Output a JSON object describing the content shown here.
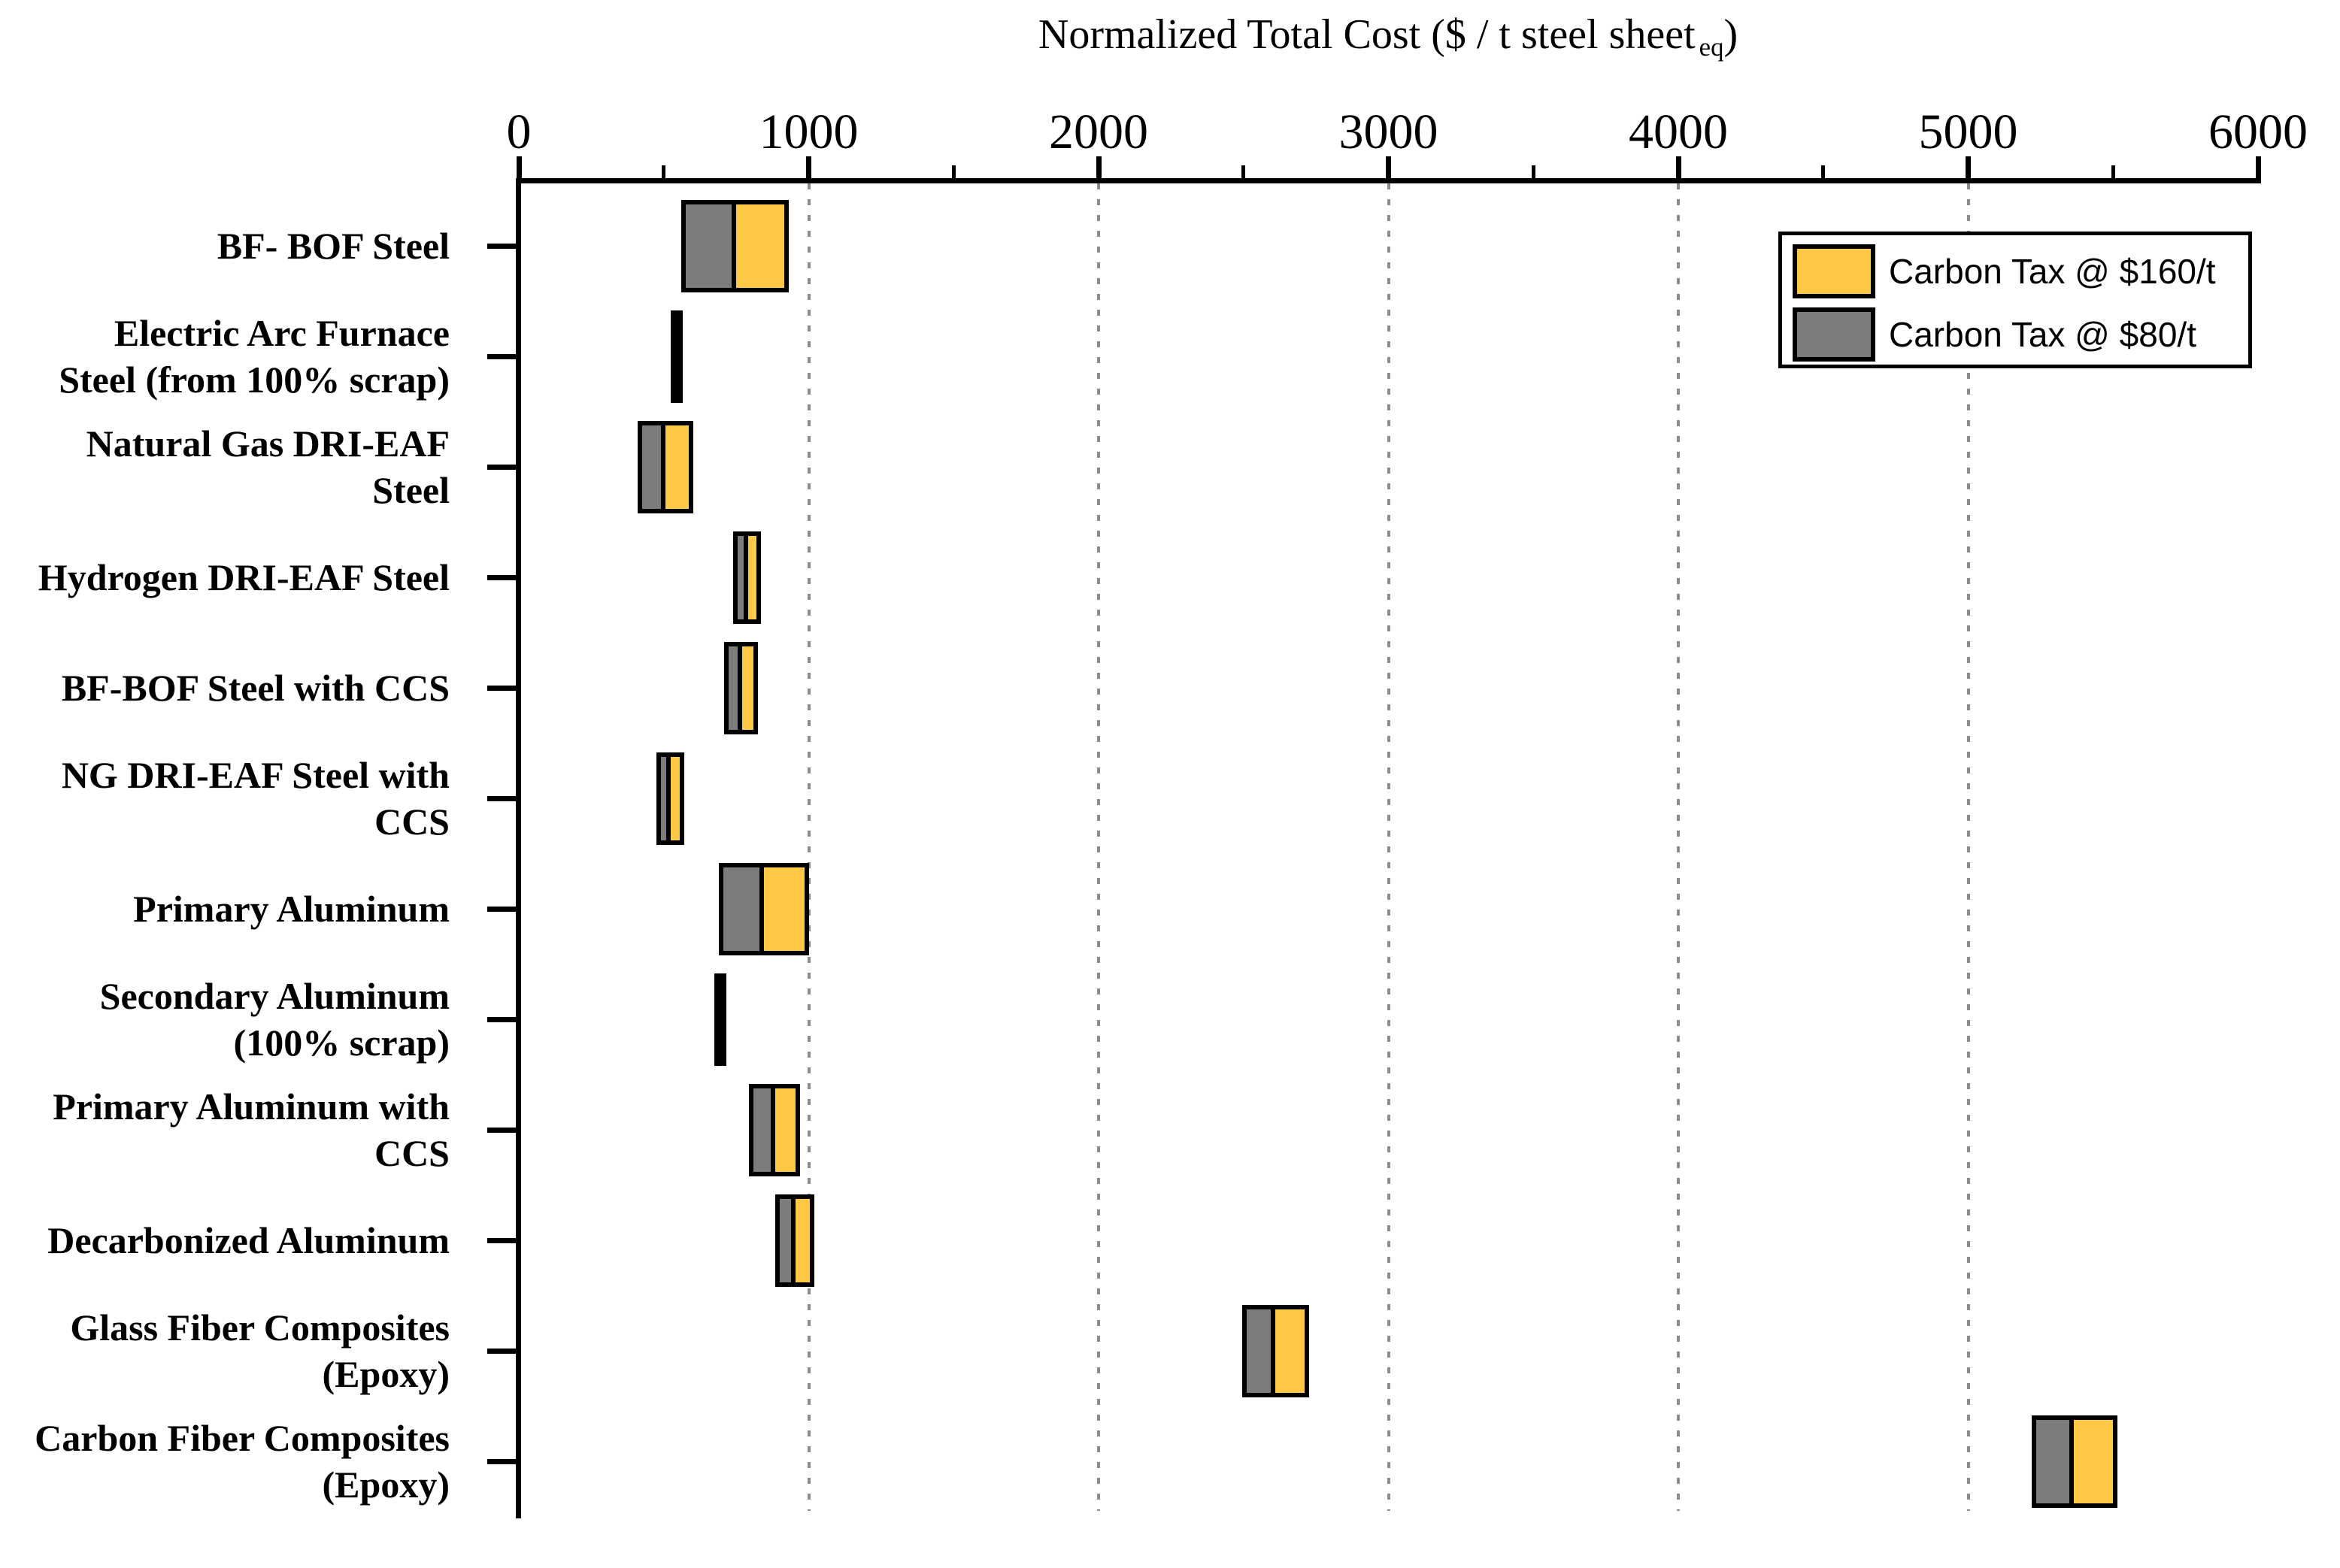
{
  "title": {
    "main": "Normalized Total Cost ($ / t steel sheet",
    "subscript": "eq",
    "suffix": ")"
  },
  "legend": {
    "items": [
      {
        "label": "Carbon Tax @ $160/t",
        "color": "#FFC845",
        "series": "tax160"
      },
      {
        "label": "Carbon Tax @ $80/t",
        "color": "#7C7C7C",
        "series": "tax80"
      }
    ]
  },
  "colors": {
    "tax160_fill": "#FFC845",
    "tax80_fill": "#7C7C7C",
    "bar_border": "#000000",
    "axis": "#000000",
    "gridline": "#8c8c8c",
    "background": "#ffffff"
  },
  "chart_data": {
    "type": "bar",
    "orientation": "horizontal-range",
    "title": "Normalized Total Cost ($ / t steel sheet eq)",
    "xlabel": "Normalized Total Cost ($ / t steel sheet eq)",
    "xlim": [
      0,
      6000
    ],
    "x_major_ticks": [
      0,
      1000,
      2000,
      3000,
      4000,
      5000,
      6000
    ],
    "x_minor_ticks": [
      500,
      1500,
      2500,
      3500,
      4500,
      5500
    ],
    "grid": "vertical dotted at 1000..5000",
    "gridline_values": [
      1000,
      2000,
      3000,
      4000,
      5000
    ],
    "legend_position": "top-right",
    "series_note": "Each bar spans cost without carbon tax (left edge) to cost with $80/t tax (gray segment end) to cost with $160/t tax (yellow segment end). Rows with zero carbon-cost sensitivity are thin black marks.",
    "categories": [
      {
        "label_lines": [
          "BF- BOF Steel"
        ],
        "base": 575,
        "tax80": 750,
        "tax160": 915
      },
      {
        "label_lines": [
          "Electric Arc Furnace",
          "Steel (from 100% scrap)"
        ],
        "base": 545,
        "tax80": 545,
        "tax160": 545
      },
      {
        "label_lines": [
          "Natural Gas DRI-EAF",
          "Steel"
        ],
        "base": 425,
        "tax80": 505,
        "tax160": 585
      },
      {
        "label_lines": [
          "Hydrogen DRI-EAF Steel"
        ],
        "base": 755,
        "tax80": 790,
        "tax160": 820
      },
      {
        "label_lines": [
          "BF-BOF Steel with CCS"
        ],
        "base": 725,
        "tax80": 770,
        "tax160": 810
      },
      {
        "label_lines": [
          "NG DRI-EAF Steel with",
          "CCS"
        ],
        "base": 490,
        "tax80": 525,
        "tax160": 555
      },
      {
        "label_lines": [
          "Primary Aluminum"
        ],
        "base": 705,
        "tax80": 845,
        "tax160": 985
      },
      {
        "label_lines": [
          "Secondary Aluminum",
          "(100% scrap)"
        ],
        "base": 695,
        "tax80": 695,
        "tax160": 695
      },
      {
        "label_lines": [
          "Primary Aluminum with",
          "CCS"
        ],
        "base": 810,
        "tax80": 885,
        "tax160": 955
      },
      {
        "label_lines": [
          "Decarbonized Aluminum"
        ],
        "base": 900,
        "tax80": 955,
        "tax160": 1005
      },
      {
        "label_lines": [
          "Glass Fiber Composites",
          "(Epoxy)"
        ],
        "base": 2510,
        "tax80": 2610,
        "tax160": 2710
      },
      {
        "label_lines": [
          "Carbon Fiber Composites",
          "(Epoxy)"
        ],
        "base": 5235,
        "tax80": 5365,
        "tax160": 5500
      }
    ]
  }
}
